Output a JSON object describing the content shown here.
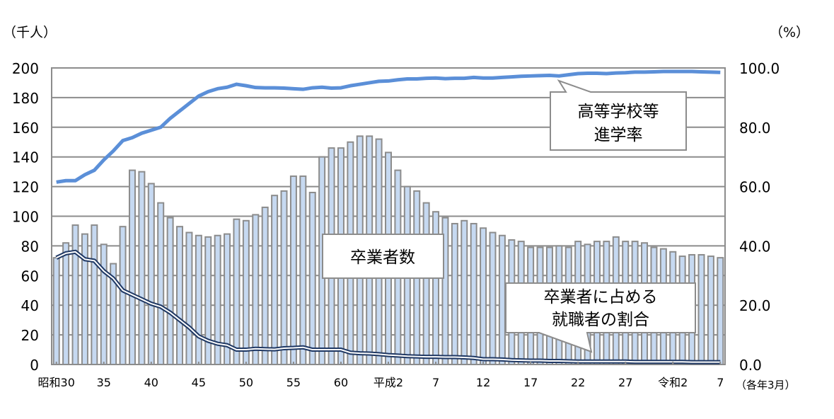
{
  "chart_data": {
    "type": "bar+line",
    "left_unit": "（千人）",
    "right_unit": "（%）",
    "x_note": "（各年3月）",
    "ylim_left": [
      0,
      200
    ],
    "ylim_right": [
      0,
      100
    ],
    "grid": true,
    "left_ticks": [
      "0",
      "20",
      "40",
      "60",
      "80",
      "100",
      "120",
      "140",
      "160",
      "180",
      "200"
    ],
    "right_ticks": [
      "0.0",
      "20.0",
      "40.0",
      "60.0",
      "80.0",
      "100.0"
    ],
    "x_tick_labels": [
      {
        "index": 0,
        "label": "昭和30"
      },
      {
        "index": 5,
        "label": "35"
      },
      {
        "index": 10,
        "label": "40"
      },
      {
        "index": 15,
        "label": "45"
      },
      {
        "index": 20,
        "label": "50"
      },
      {
        "index": 25,
        "label": "55"
      },
      {
        "index": 30,
        "label": "60"
      },
      {
        "index": 35,
        "label": "平成2"
      },
      {
        "index": 40,
        "label": "7"
      },
      {
        "index": 45,
        "label": "12"
      },
      {
        "index": 50,
        "label": "17"
      },
      {
        "index": 55,
        "label": "22"
      },
      {
        "index": 60,
        "label": "27"
      },
      {
        "index": 65,
        "label": "令和2"
      },
      {
        "index": 70,
        "label": "7"
      }
    ],
    "series": [
      {
        "name": "卒業者数",
        "type": "bar",
        "axis": "left",
        "color": "#c6d9f1",
        "edge": "#8c8c8c",
        "values": [
          72,
          82,
          94,
          88,
          94,
          81,
          68,
          93,
          131,
          130,
          122,
          109,
          99,
          93,
          89,
          87,
          86,
          87,
          88,
          98,
          97,
          101,
          106,
          114,
          117,
          127,
          127,
          116,
          140,
          146,
          146,
          150,
          154,
          154,
          152,
          143,
          131,
          120,
          117,
          109,
          103,
          99,
          95,
          97,
          95,
          92,
          89,
          87,
          84,
          83,
          79,
          79,
          79,
          80,
          79,
          83,
          81,
          83,
          83,
          86,
          83,
          83,
          82,
          79,
          78,
          76,
          73,
          74,
          74,
          73,
          72
        ]
      },
      {
        "name": "高等学校等進学率",
        "type": "line",
        "axis": "right",
        "color": "#5b8fd8",
        "values": [
          61.5,
          62,
          62,
          64,
          65.5,
          69,
          72,
          75.5,
          76.5,
          78,
          79,
          80,
          83,
          85.5,
          88,
          90.5,
          92,
          93,
          93.5,
          94.5,
          94,
          93.4,
          93.3,
          93.3,
          93.2,
          93,
          92.8,
          93.3,
          93.5,
          93.2,
          93.3,
          94,
          94.5,
          95,
          95.5,
          95.6,
          96,
          96.3,
          96.3,
          96.5,
          96.6,
          96.4,
          96.5,
          96.5,
          96.8,
          96.6,
          96.6,
          96.8,
          97,
          97.2,
          97.3,
          97.4,
          97.5,
          97.3,
          97.7,
          98.1,
          98.2,
          98.2,
          98.1,
          98.3,
          98.4,
          98.6,
          98.6,
          98.7,
          98.8,
          98.8,
          98.8,
          98.8,
          98.7,
          98.6,
          98.5
        ]
      },
      {
        "name": "卒業者に占める就職者の割合",
        "type": "line",
        "axis": "right",
        "color": "#1f3864",
        "values": [
          36,
          37.5,
          38,
          35.5,
          35,
          31.5,
          29,
          25,
          23.5,
          22,
          20.5,
          19.5,
          17.5,
          15,
          12.5,
          9.5,
          8,
          7,
          6.5,
          5,
          5,
          5.3,
          5.2,
          5.1,
          5.5,
          5.6,
          5.8,
          5,
          5,
          5,
          5,
          4,
          3.8,
          3.7,
          3.5,
          3.2,
          3,
          2.8,
          2.7,
          2.6,
          2.6,
          2.5,
          2.5,
          2.4,
          2.2,
          1.8,
          1.8,
          1.7,
          1.5,
          1.4,
          1.3,
          1.3,
          1.2,
          1.2,
          1.1,
          1.0,
          1.0,
          1.0,
          1.0,
          1.0,
          1.0,
          0.9,
          0.9,
          0.9,
          0.9,
          0.9,
          0.9,
          0.8,
          0.8,
          0.8,
          0.8
        ]
      }
    ],
    "annotations": {
      "rate_callout": [
        "高等学校等",
        "進学率"
      ],
      "graduates_label": "卒業者数",
      "employment_callout": [
        "卒業者に占める",
        "就職者の割合"
      ]
    }
  }
}
